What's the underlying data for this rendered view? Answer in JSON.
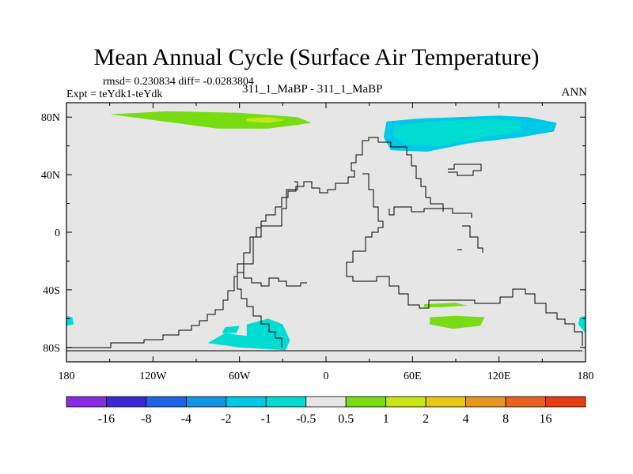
{
  "figure": {
    "title": "Mean Annual Cycle (Surface Air Temperature)",
    "stats_line": "rmsd= 0.230834 diff= -0.0283804",
    "expt_line": "Expt = teYdk1-teYdk",
    "center_label": "311_1_MaBP - 311_1_MaBP",
    "season_label": "ANN"
  },
  "colors": {
    "land_fill": "#e6e6e6",
    "frame": "#000000",
    "coast": "#000000"
  },
  "chart_data": {
    "type": "heatmap",
    "title": "Mean Annual Cycle (Surface Air Temperature)",
    "projection": "cylindrical-equidistant",
    "x_axis": {
      "range": [
        -180,
        180
      ],
      "ticks": [
        -180,
        -120,
        -60,
        0,
        60,
        120,
        180
      ],
      "tick_labels": [
        "180",
        "120W",
        "60W",
        "0",
        "60E",
        "120E",
        "180"
      ]
    },
    "y_axis": {
      "range": [
        -90,
        90
      ],
      "ticks": [
        80,
        40,
        0,
        -40,
        -80
      ],
      "tick_labels": [
        "80N",
        "40N",
        "0",
        "40S",
        "80S"
      ]
    },
    "colorbar": {
      "levels": [
        "-16",
        "-8",
        "-4",
        "-2",
        "-1",
        "-0.5",
        "0.5",
        "1",
        "2",
        "4",
        "8",
        "16"
      ],
      "colors": [
        "#8a2be2",
        "#3c28d2",
        "#1e64e6",
        "#1496e6",
        "#00c8e6",
        "#00dcd2",
        "#e6e6e6",
        "#78dc14",
        "#c8e614",
        "#e6c814",
        "#e6961e",
        "#e6641e",
        "#e63c14"
      ]
    },
    "regions": [
      {
        "name": "arctic-east-anomaly",
        "range": "-2 to -1",
        "color": "#00c8e6",
        "polygon": [
          [
            42,
            77
          ],
          [
            65,
            79
          ],
          [
            120,
            81
          ],
          [
            140,
            80
          ],
          [
            160,
            76
          ],
          [
            158,
            70
          ],
          [
            135,
            66
          ],
          [
            100,
            62
          ],
          [
            70,
            56
          ],
          [
            45,
            57
          ],
          [
            40,
            66
          ]
        ]
      },
      {
        "name": "arctic-east-core",
        "range": "-1 to -0.5",
        "color": "#00dcd2",
        "polygon": [
          [
            48,
            74
          ],
          [
            75,
            77
          ],
          [
            115,
            79
          ],
          [
            135,
            77
          ],
          [
            135,
            70
          ],
          [
            110,
            66
          ],
          [
            78,
            60
          ],
          [
            55,
            61
          ],
          [
            46,
            68
          ]
        ]
      },
      {
        "name": "north-atlantic-anomaly",
        "range": "0.5 to 1",
        "color": "#78dc14",
        "polygon": [
          [
            -150,
            82
          ],
          [
            -110,
            84
          ],
          [
            -60,
            83
          ],
          [
            -20,
            80
          ],
          [
            -10,
            76
          ],
          [
            -40,
            72
          ],
          [
            -75,
            72
          ],
          [
            -120,
            78
          ]
        ]
      },
      {
        "name": "north-atlantic-core",
        "range": "1 to 2",
        "color": "#c8e614",
        "polygon": [
          [
            -55,
            79
          ],
          [
            -40,
            80
          ],
          [
            -28,
            78
          ],
          [
            -40,
            76
          ],
          [
            -55,
            77
          ]
        ]
      },
      {
        "name": "southern-indian-anomaly",
        "range": "0.5 to 1",
        "color": "#78dc14",
        "polygon": [
          [
            72,
            -59
          ],
          [
            90,
            -58
          ],
          [
            110,
            -59
          ],
          [
            107,
            -65
          ],
          [
            88,
            -67
          ],
          [
            72,
            -64
          ]
        ]
      },
      {
        "name": "southern-indian-strip",
        "range": "0.5 to 1",
        "color": "#78dc14",
        "polygon": [
          [
            68,
            -50
          ],
          [
            90,
            -49
          ],
          [
            98,
            -51
          ],
          [
            80,
            -52
          ],
          [
            68,
            -52
          ]
        ]
      },
      {
        "name": "ross-sea-anomaly",
        "range": "-1 to -0.5",
        "color": "#00dcd2",
        "polygon": [
          [
            -180,
            -58
          ],
          [
            -176,
            -59
          ],
          [
            -175,
            -64
          ],
          [
            -180,
            -65
          ]
        ]
      },
      {
        "name": "ross-sea-anomaly-east",
        "range": "-1 to -0.5",
        "color": "#00dcd2",
        "polygon": [
          [
            180,
            -58
          ],
          [
            176,
            -59
          ],
          [
            175,
            -64
          ],
          [
            180,
            -70
          ]
        ]
      },
      {
        "name": "weddell-anomaly",
        "range": "-1 to -0.5",
        "color": "#00dcd2",
        "polygon": [
          [
            -55,
            -64
          ],
          [
            -40,
            -60
          ],
          [
            -30,
            -64
          ],
          [
            -25,
            -75
          ],
          [
            -28,
            -82
          ],
          [
            -60,
            -80
          ],
          [
            -82,
            -77
          ],
          [
            -70,
            -70
          ],
          [
            -55,
            -72
          ]
        ]
      },
      {
        "name": "amundsen-anomaly",
        "range": "-1 to -0.5",
        "color": "#00dcd2",
        "polygon": [
          [
            -70,
            -66
          ],
          [
            -60,
            -65
          ],
          [
            -62,
            -70
          ],
          [
            -72,
            -70
          ]
        ]
      }
    ]
  }
}
